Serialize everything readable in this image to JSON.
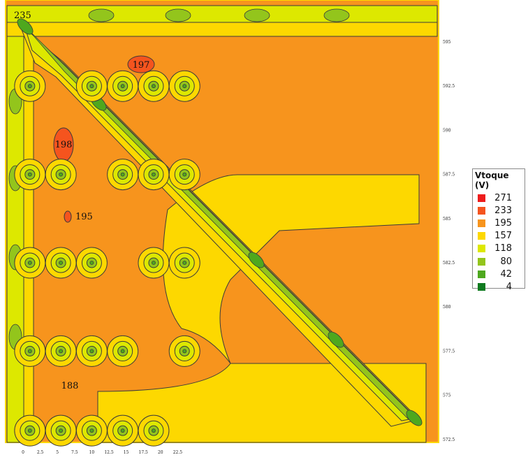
{
  "chart_data": {
    "type": "heatmap",
    "title": "",
    "xlabel": "",
    "ylabel": "",
    "x_ticks": [
      "0",
      "2.5",
      "5",
      "7.5",
      "10",
      "12.5",
      "15",
      "17.5",
      "20",
      "22.5"
    ],
    "y_ticks": [
      "595",
      "592.5",
      "590",
      "587.5",
      "585",
      "582.5",
      "580",
      "577.5",
      "575",
      "572.5"
    ],
    "legend": {
      "title": "Vtoque (V)",
      "placement": "right",
      "levels": [
        {
          "value": "271",
          "color": "#ee1c1c"
        },
        {
          "value": "233",
          "color": "#f5541e"
        },
        {
          "value": "195",
          "color": "#f7941d"
        },
        {
          "value": "157",
          "color": "#fdd800"
        },
        {
          "value": "118",
          "color": "#dde800"
        },
        {
          "value": "80",
          "color": "#93c51c"
        },
        {
          "value": "42",
          "color": "#4ea81e"
        },
        {
          "value": "4",
          "color": "#0f7a1f"
        }
      ]
    },
    "annotations": [
      "235",
      "197",
      "198",
      "195",
      "188"
    ],
    "grid_points_x": [
      1,
      5.5,
      10,
      14.5,
      19,
      23.5
    ],
    "grid_points_y": [
      592.5,
      587.5,
      582.5,
      577.5,
      573
    ]
  }
}
